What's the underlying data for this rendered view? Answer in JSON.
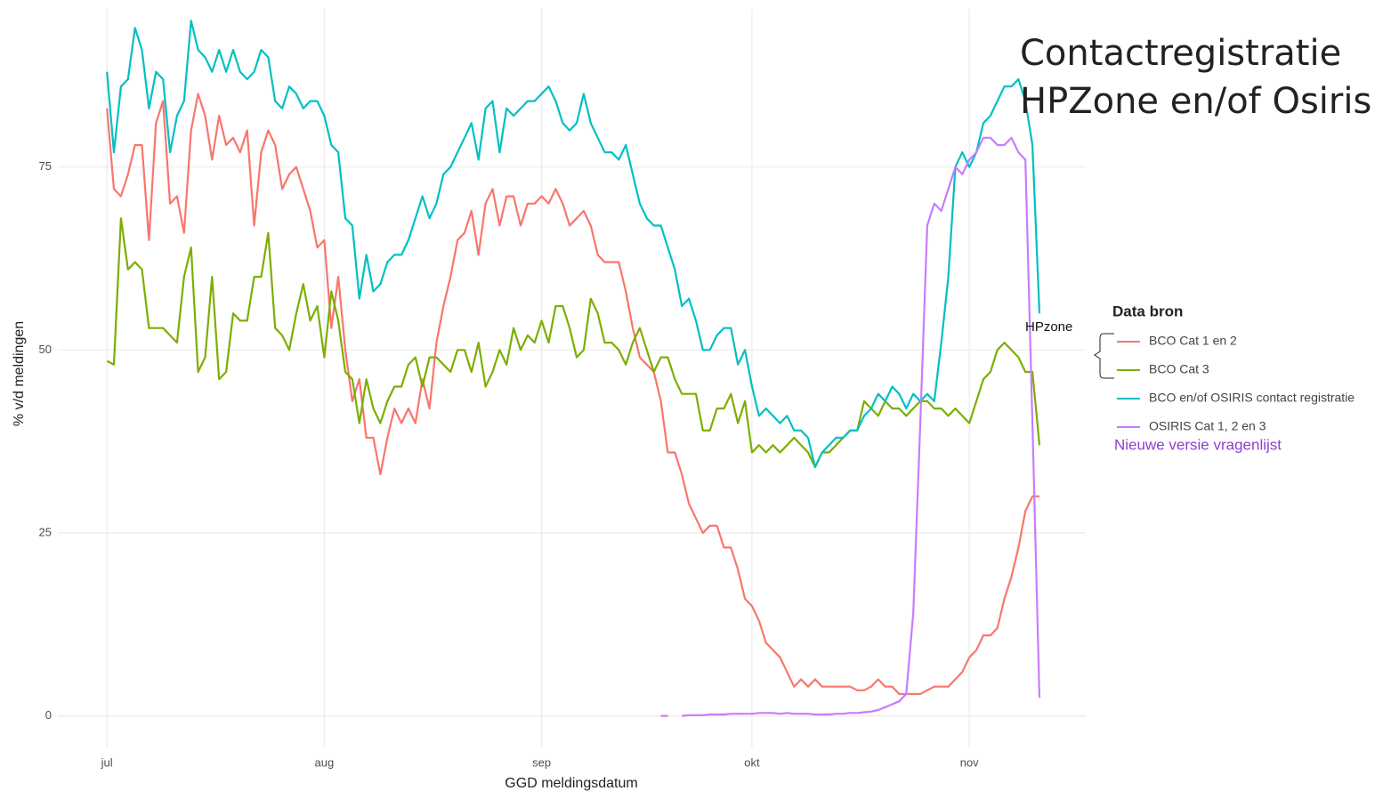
{
  "chart_data": {
    "type": "line",
    "title": [
      "Contactregistratie",
      "HPZone en/of Osiris"
    ],
    "x_label": "GGD meldingsdatum",
    "y_label": "% v/d meldingen",
    "legend_title": "Data bron",
    "legend_position": "right",
    "annotations": [
      "HPzone",
      "Nieuwe versie vragenlijst"
    ],
    "grid": true,
    "xlim": [
      -7,
      139.6
    ],
    "ylim": [
      -4.3,
      96.6
    ],
    "xticks": [
      {
        "value": 0,
        "label": "jul"
      },
      {
        "value": 31,
        "label": "aug"
      },
      {
        "value": 62,
        "label": "sep"
      },
      {
        "value": 92,
        "label": "okt"
      },
      {
        "value": 123,
        "label": "nov"
      }
    ],
    "yticks": [
      0,
      25,
      50,
      75
    ],
    "x": [
      0,
      1,
      2,
      3,
      4,
      5,
      6,
      7,
      8,
      9,
      10,
      11,
      12,
      13,
      14,
      15,
      16,
      17,
      18,
      19,
      20,
      21,
      22,
      23,
      24,
      25,
      26,
      27,
      28,
      29,
      30,
      31,
      32,
      33,
      34,
      35,
      36,
      37,
      38,
      39,
      40,
      41,
      42,
      43,
      44,
      45,
      46,
      47,
      48,
      49,
      50,
      51,
      52,
      53,
      54,
      55,
      56,
      57,
      58,
      59,
      60,
      61,
      62,
      63,
      64,
      65,
      66,
      67,
      68,
      69,
      70,
      71,
      72,
      73,
      74,
      75,
      76,
      77,
      78,
      79,
      80,
      81,
      82,
      83,
      84,
      85,
      86,
      87,
      88,
      89,
      90,
      91,
      92,
      93,
      94,
      95,
      96,
      97,
      98,
      99,
      100,
      101,
      102,
      103,
      104,
      105,
      106,
      107,
      108,
      109,
      110,
      111,
      112,
      113,
      114,
      115,
      116,
      117,
      118,
      119,
      120,
      121,
      122,
      123,
      124,
      125,
      126,
      127,
      128,
      129,
      130,
      131,
      132,
      133
    ],
    "series": [
      {
        "name": "BCO Cat 1 en 2",
        "color": "#f8766d",
        "values": [
          83,
          72,
          71,
          74,
          78,
          78,
          65,
          81,
          84,
          70,
          71,
          66,
          80,
          85,
          82,
          76,
          82,
          78,
          79,
          77,
          80,
          67,
          77,
          80,
          78,
          72,
          74,
          75,
          72,
          69,
          64,
          65,
          53,
          60,
          50,
          43,
          46,
          38,
          38,
          33,
          38,
          42,
          40,
          42,
          40,
          46,
          42,
          51,
          56,
          60,
          65,
          66,
          69,
          63,
          70,
          72,
          67,
          71,
          71,
          67,
          70,
          70,
          71,
          70,
          72,
          70,
          67,
          68,
          69,
          67,
          63,
          62,
          62,
          62,
          58,
          53,
          49,
          48,
          47,
          43,
          36,
          36,
          33,
          29,
          27,
          25,
          26,
          26,
          23,
          23,
          20,
          16,
          15,
          13,
          10,
          9,
          8,
          6,
          4,
          5,
          4,
          5,
          4,
          4,
          4,
          4,
          4,
          3.5,
          3.5,
          4,
          5,
          4,
          4,
          3,
          3,
          3,
          3,
          3.5,
          4,
          4,
          4,
          5,
          6,
          8,
          9,
          11,
          11,
          12,
          16,
          19,
          23,
          28,
          30,
          30
        ]
      },
      {
        "name": "BCO Cat 3",
        "color": "#7cae00",
        "values": [
          48.5,
          48,
          68,
          61,
          62,
          61,
          53,
          53,
          53,
          52,
          51,
          60,
          64,
          47,
          49,
          60,
          46,
          47,
          55,
          54,
          54,
          60,
          60,
          66,
          53,
          52,
          50,
          55,
          59,
          54,
          56,
          49,
          58,
          54,
          47,
          46,
          40,
          46,
          42,
          40,
          43,
          45,
          45,
          48,
          49,
          45,
          49,
          49,
          48,
          47,
          50,
          50,
          47,
          51,
          45,
          47,
          50,
          48,
          53,
          50,
          52,
          51,
          54,
          51,
          56,
          56,
          53,
          49,
          50,
          57,
          55,
          51,
          51,
          50,
          48,
          51,
          53,
          50,
          47,
          49,
          49,
          46,
          44,
          44,
          44,
          39,
          39,
          42,
          42,
          44,
          40,
          43,
          36,
          37,
          36,
          37,
          36,
          37,
          38,
          37,
          36,
          34,
          36,
          36,
          37,
          38,
          39,
          39,
          43,
          42,
          41,
          43,
          42,
          42,
          41,
          42,
          43,
          43,
          42,
          42,
          41,
          42,
          41,
          40,
          43,
          46,
          47,
          50,
          51,
          50,
          49,
          47,
          47,
          37
        ]
      },
      {
        "name": "BCO en/of OSIRIS contact registratie",
        "color": "#00bfc4",
        "values": [
          88,
          77,
          86,
          87,
          94,
          91,
          83,
          88,
          87,
          77,
          82,
          84,
          95,
          91,
          90,
          88,
          91,
          88,
          91,
          88,
          87,
          88,
          91,
          90,
          84,
          83,
          86,
          85,
          83,
          84,
          84,
          82,
          78,
          77,
          68,
          67,
          57,
          63,
          58,
          59,
          62,
          63,
          63,
          65,
          68,
          71,
          68,
          70,
          74,
          75,
          77,
          79,
          81,
          76,
          83,
          84,
          77,
          83,
          82,
          83,
          84,
          84,
          85,
          86,
          84,
          81,
          80,
          81,
          85,
          81,
          79,
          77,
          77,
          76,
          78,
          74,
          70,
          68,
          67,
          67,
          64,
          61,
          56,
          57,
          54,
          50,
          50,
          52,
          53,
          53,
          48,
          50,
          45,
          41,
          42,
          41,
          40,
          41,
          39,
          39,
          38,
          34,
          36,
          37,
          38,
          38,
          39,
          39,
          41,
          42,
          44,
          43,
          45,
          44,
          42,
          44,
          43,
          44,
          43,
          51,
          60,
          75,
          77,
          75,
          77,
          81,
          82,
          84,
          86,
          86,
          87,
          84,
          78,
          55
        ]
      },
      {
        "name": "OSIRIS Cat 1, 2 en 3",
        "color": "#c77cff",
        "values": [
          null,
          null,
          null,
          null,
          null,
          null,
          null,
          null,
          null,
          null,
          null,
          null,
          null,
          null,
          null,
          null,
          null,
          null,
          null,
          null,
          null,
          null,
          null,
          null,
          null,
          null,
          null,
          null,
          null,
          null,
          null,
          null,
          null,
          null,
          null,
          null,
          null,
          null,
          null,
          null,
          null,
          null,
          null,
          null,
          null,
          null,
          null,
          null,
          null,
          null,
          null,
          null,
          null,
          null,
          null,
          null,
          null,
          null,
          null,
          null,
          null,
          null,
          null,
          null,
          null,
          null,
          null,
          null,
          null,
          null,
          null,
          null,
          null,
          null,
          null,
          null,
          null,
          null,
          null,
          0,
          0,
          null,
          0,
          0.1,
          0.1,
          0.1,
          0.2,
          0.2,
          0.2,
          0.3,
          0.3,
          0.3,
          0.3,
          0.4,
          0.4,
          0.4,
          0.3,
          0.4,
          0.3,
          0.3,
          0.3,
          0.2,
          0.2,
          0.2,
          0.3,
          0.3,
          0.4,
          0.4,
          0.5,
          0.6,
          0.8,
          1.2,
          1.6,
          2,
          3,
          14,
          40,
          67,
          70,
          69,
          72,
          75,
          74,
          76,
          77,
          79,
          79,
          78,
          78,
          79,
          77,
          76,
          40,
          2.5
        ]
      }
    ]
  }
}
